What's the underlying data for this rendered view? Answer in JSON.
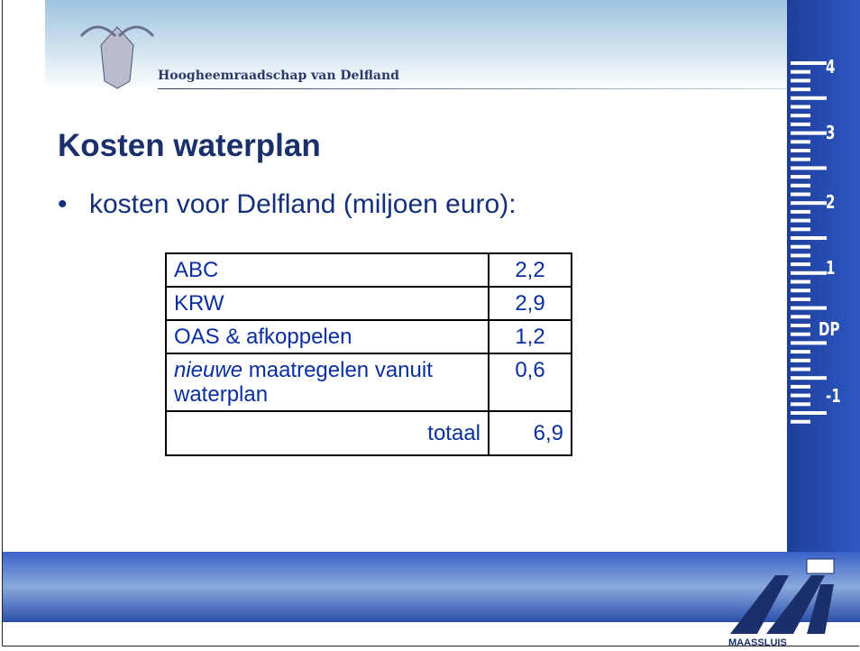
{
  "header": {
    "organization": "Hoogheemraadschap van Delfland"
  },
  "title": "Kosten waterplan",
  "bullet": "kosten voor Delfland (miljoen euro):",
  "table": {
    "rows": [
      [
        "ABC",
        "2,2"
      ],
      [
        "KRW",
        "2,9"
      ],
      [
        "OAS & afkoppelen",
        "1,2"
      ],
      [
        {
          "emphasis": "nieuwe",
          "rest": "maatregelen vanuit waterplan"
        },
        "0,6"
      ],
      [
        "totaal",
        "6,9"
      ]
    ]
  },
  "gauge": {
    "labels": [
      "4",
      "3",
      "2",
      "1",
      "DP",
      "-1"
    ]
  },
  "logo": {
    "label": "MAASSLUIS"
  }
}
